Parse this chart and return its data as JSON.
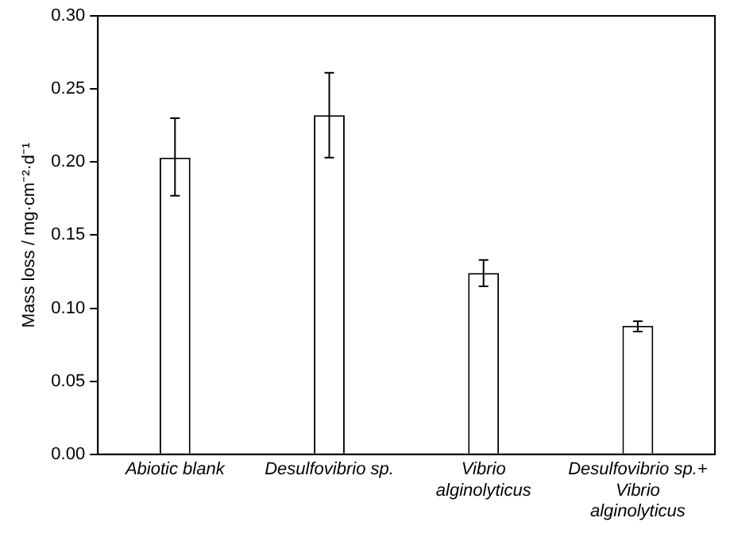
{
  "chart_data": {
    "type": "bar",
    "ylabel": "Mass loss / mg·cm⁻²·d⁻¹",
    "categories": [
      "Abiotic blank",
      "Desulfovibrio sp.",
      "Vibrio alginolyticus",
      "Desulfovibrio sp.+ Vibrio alginolyticus"
    ],
    "values": [
      0.203,
      0.232,
      0.124,
      0.088
    ],
    "errors": [
      [
        0.177,
        0.23
      ],
      [
        0.203,
        0.261
      ],
      [
        0.115,
        0.133
      ],
      [
        0.084,
        0.091
      ]
    ],
    "color": "#ffffff",
    "ylim": [
      0,
      0.3
    ],
    "yticks": [
      {
        "value": 0,
        "label": "0.00"
      },
      {
        "value": 0.05,
        "label": "0.05"
      },
      {
        "value": 0.1,
        "label": "0.10"
      },
      {
        "value": 0.15,
        "label": "0.15"
      },
      {
        "value": 0.2,
        "label": "0.20"
      },
      {
        "value": 0.25,
        "label": "0.25"
      },
      {
        "value": 0.3,
        "label": "0.30"
      }
    ],
    "grid": false,
    "legend": false
  }
}
